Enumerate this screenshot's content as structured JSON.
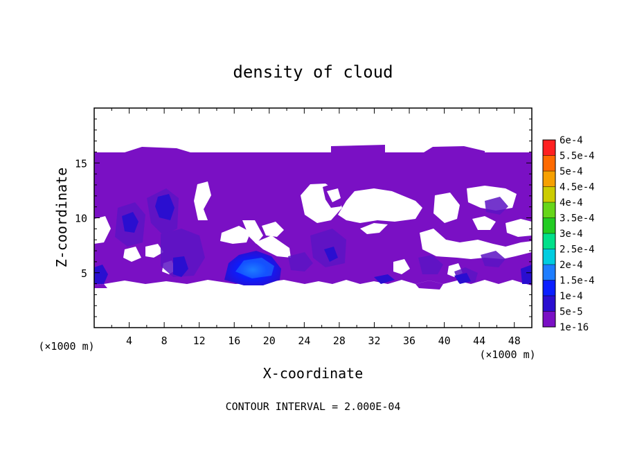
{
  "chart_data": {
    "type": "heatmap",
    "title": "density of cloud",
    "xlabel": "X-coordinate",
    "ylabel": "Z-coordinate",
    "x_unit": "(×1000 m)",
    "z_unit": "(×1000 m)",
    "xlim": [
      0,
      50
    ],
    "ylim": [
      0,
      20
    ],
    "x_ticks": [
      4,
      8,
      12,
      16,
      20,
      24,
      28,
      32,
      36,
      40,
      44,
      48
    ],
    "y_ticks": [
      5,
      10,
      15
    ],
    "footer": "CONTOUR INTERVAL = 2.000E-04",
    "colorbar": {
      "levels": [
        "1e-16",
        "5e-5",
        "1e-4",
        "1.5e-4",
        "2e-4",
        "2.5e-4",
        "3e-4",
        "3.5e-4",
        "4e-4",
        "4.5e-4",
        "5e-4",
        "5.5e-4",
        "6e-4"
      ],
      "colors": [
        "#7a10c4",
        "#2a0ed0",
        "#0a1eff",
        "#1e7dff",
        "#00cde0",
        "#00e08a",
        "#22cc22",
        "#66d619",
        "#cccc00",
        "#f6a000",
        "#ff6a00",
        "#ff2020",
        "#ff7a7a"
      ]
    },
    "regions": [
      {
        "level": "1e-16",
        "x": [
          0,
          50
        ],
        "z": [
          4,
          16
        ]
      },
      {
        "level": "5e-5",
        "x": [
          16,
          21
        ],
        "z": [
          4.3,
          6
        ]
      },
      {
        "level": "1e-4",
        "x": [
          16.5,
          20
        ],
        "z": [
          4.5,
          5.7
        ]
      },
      {
        "level": "5e-5",
        "x": [
          3,
          5
        ],
        "z": [
          8.8,
          10.2
        ]
      },
      {
        "level": "5e-5",
        "x": [
          7,
          9
        ],
        "z": [
          9.5,
          11
        ]
      },
      {
        "level": "5e-5",
        "x": [
          0,
          1.5
        ],
        "z": [
          4.2,
          5.6
        ]
      },
      {
        "level": "5e-5",
        "x": [
          48.5,
          50
        ],
        "z": [
          4.2,
          5.6
        ]
      }
    ]
  }
}
